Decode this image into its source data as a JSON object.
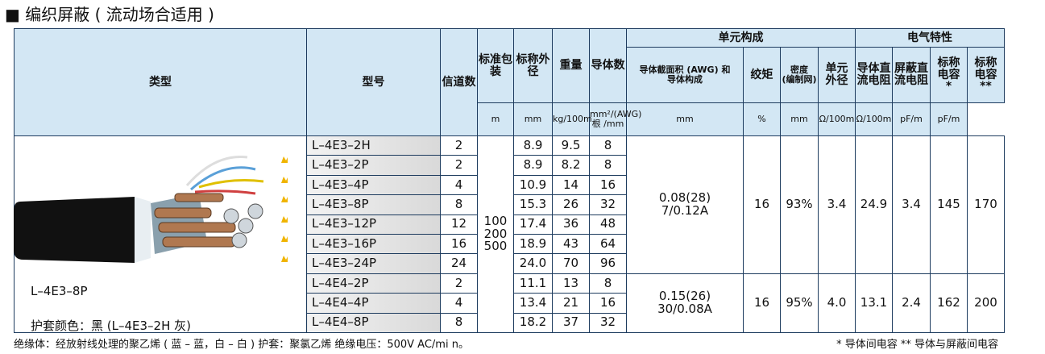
{
  "header": {
    "title": "■ 编织屏蔽 ( 流动场合适用 )"
  },
  "table": {
    "columns": [
      "类型",
      "型号",
      "信道数",
      "标准包装",
      "标称外径",
      "重量",
      "导体数",
      "导体截面积 (AWG) 和\n导体构成",
      "绞矩",
      "密度\n(编制网)",
      "单元\n外径",
      "导体直\n流电阻",
      "屏蔽直\n流电阻",
      "标称\n电容\n*",
      "标称\n电容\n**"
    ],
    "groups": [
      "单元构成",
      "电气特性"
    ],
    "units": [
      "m",
      "mm",
      "kg/100m",
      "mm²/(AWG)\n根 /mm",
      "mm",
      "%",
      "mm",
      "Ω/100m",
      "Ω/100m",
      "pF/m",
      "pF/m"
    ],
    "packaging": "100\n200\n500",
    "rows": [
      [
        "L–4E3–2H",
        "2",
        "8.9",
        "9.5",
        "8"
      ],
      [
        "L–4E3–2P",
        "2",
        "8.9",
        "8.2",
        "8"
      ],
      [
        "L–4E3–4P",
        "4",
        "10.9",
        "14",
        "16"
      ],
      [
        "L–4E3–8P",
        "8",
        "15.3",
        "26",
        "32"
      ],
      [
        "L–4E3–12P",
        "12",
        "17.4",
        "36",
        "48"
      ],
      [
        "L–4E3–16P",
        "16",
        "18.9",
        "43",
        "64"
      ],
      [
        "L–4E3–24P",
        "24",
        "24.0",
        "70",
        "96"
      ],
      [
        "L–4E4–2P",
        "2",
        "11.1",
        "13",
        "8"
      ],
      [
        "L–4E4–4P",
        "4",
        "13.4",
        "21",
        "16"
      ],
      [
        "L–4E4–8P",
        "8",
        "18.2",
        "37",
        "32"
      ]
    ],
    "specs": [
      [
        "0.08(28)\n7/0.12A",
        "16",
        "93%",
        "3.4",
        "24.9",
        "3.4",
        "145",
        "170"
      ],
      [
        "0.15(26)\n30/0.08A",
        "16",
        "95%",
        "4.0",
        "13.1",
        "2.4",
        "162",
        "200"
      ]
    ],
    "image_caption": "L–4E3–8P",
    "image_note": "护套颜色：黑 (L–4E3–2H 灰)"
  },
  "footer": {
    "left": "绝缘体：经放射线处理的聚乙烯 ( 蓝 – 蓝，白 – 白 ) 护套：聚氯乙烯 绝缘电压：500V AC/mi n。",
    "right": "* 导体间电容 ** 导体与屏蔽间电容"
  }
}
